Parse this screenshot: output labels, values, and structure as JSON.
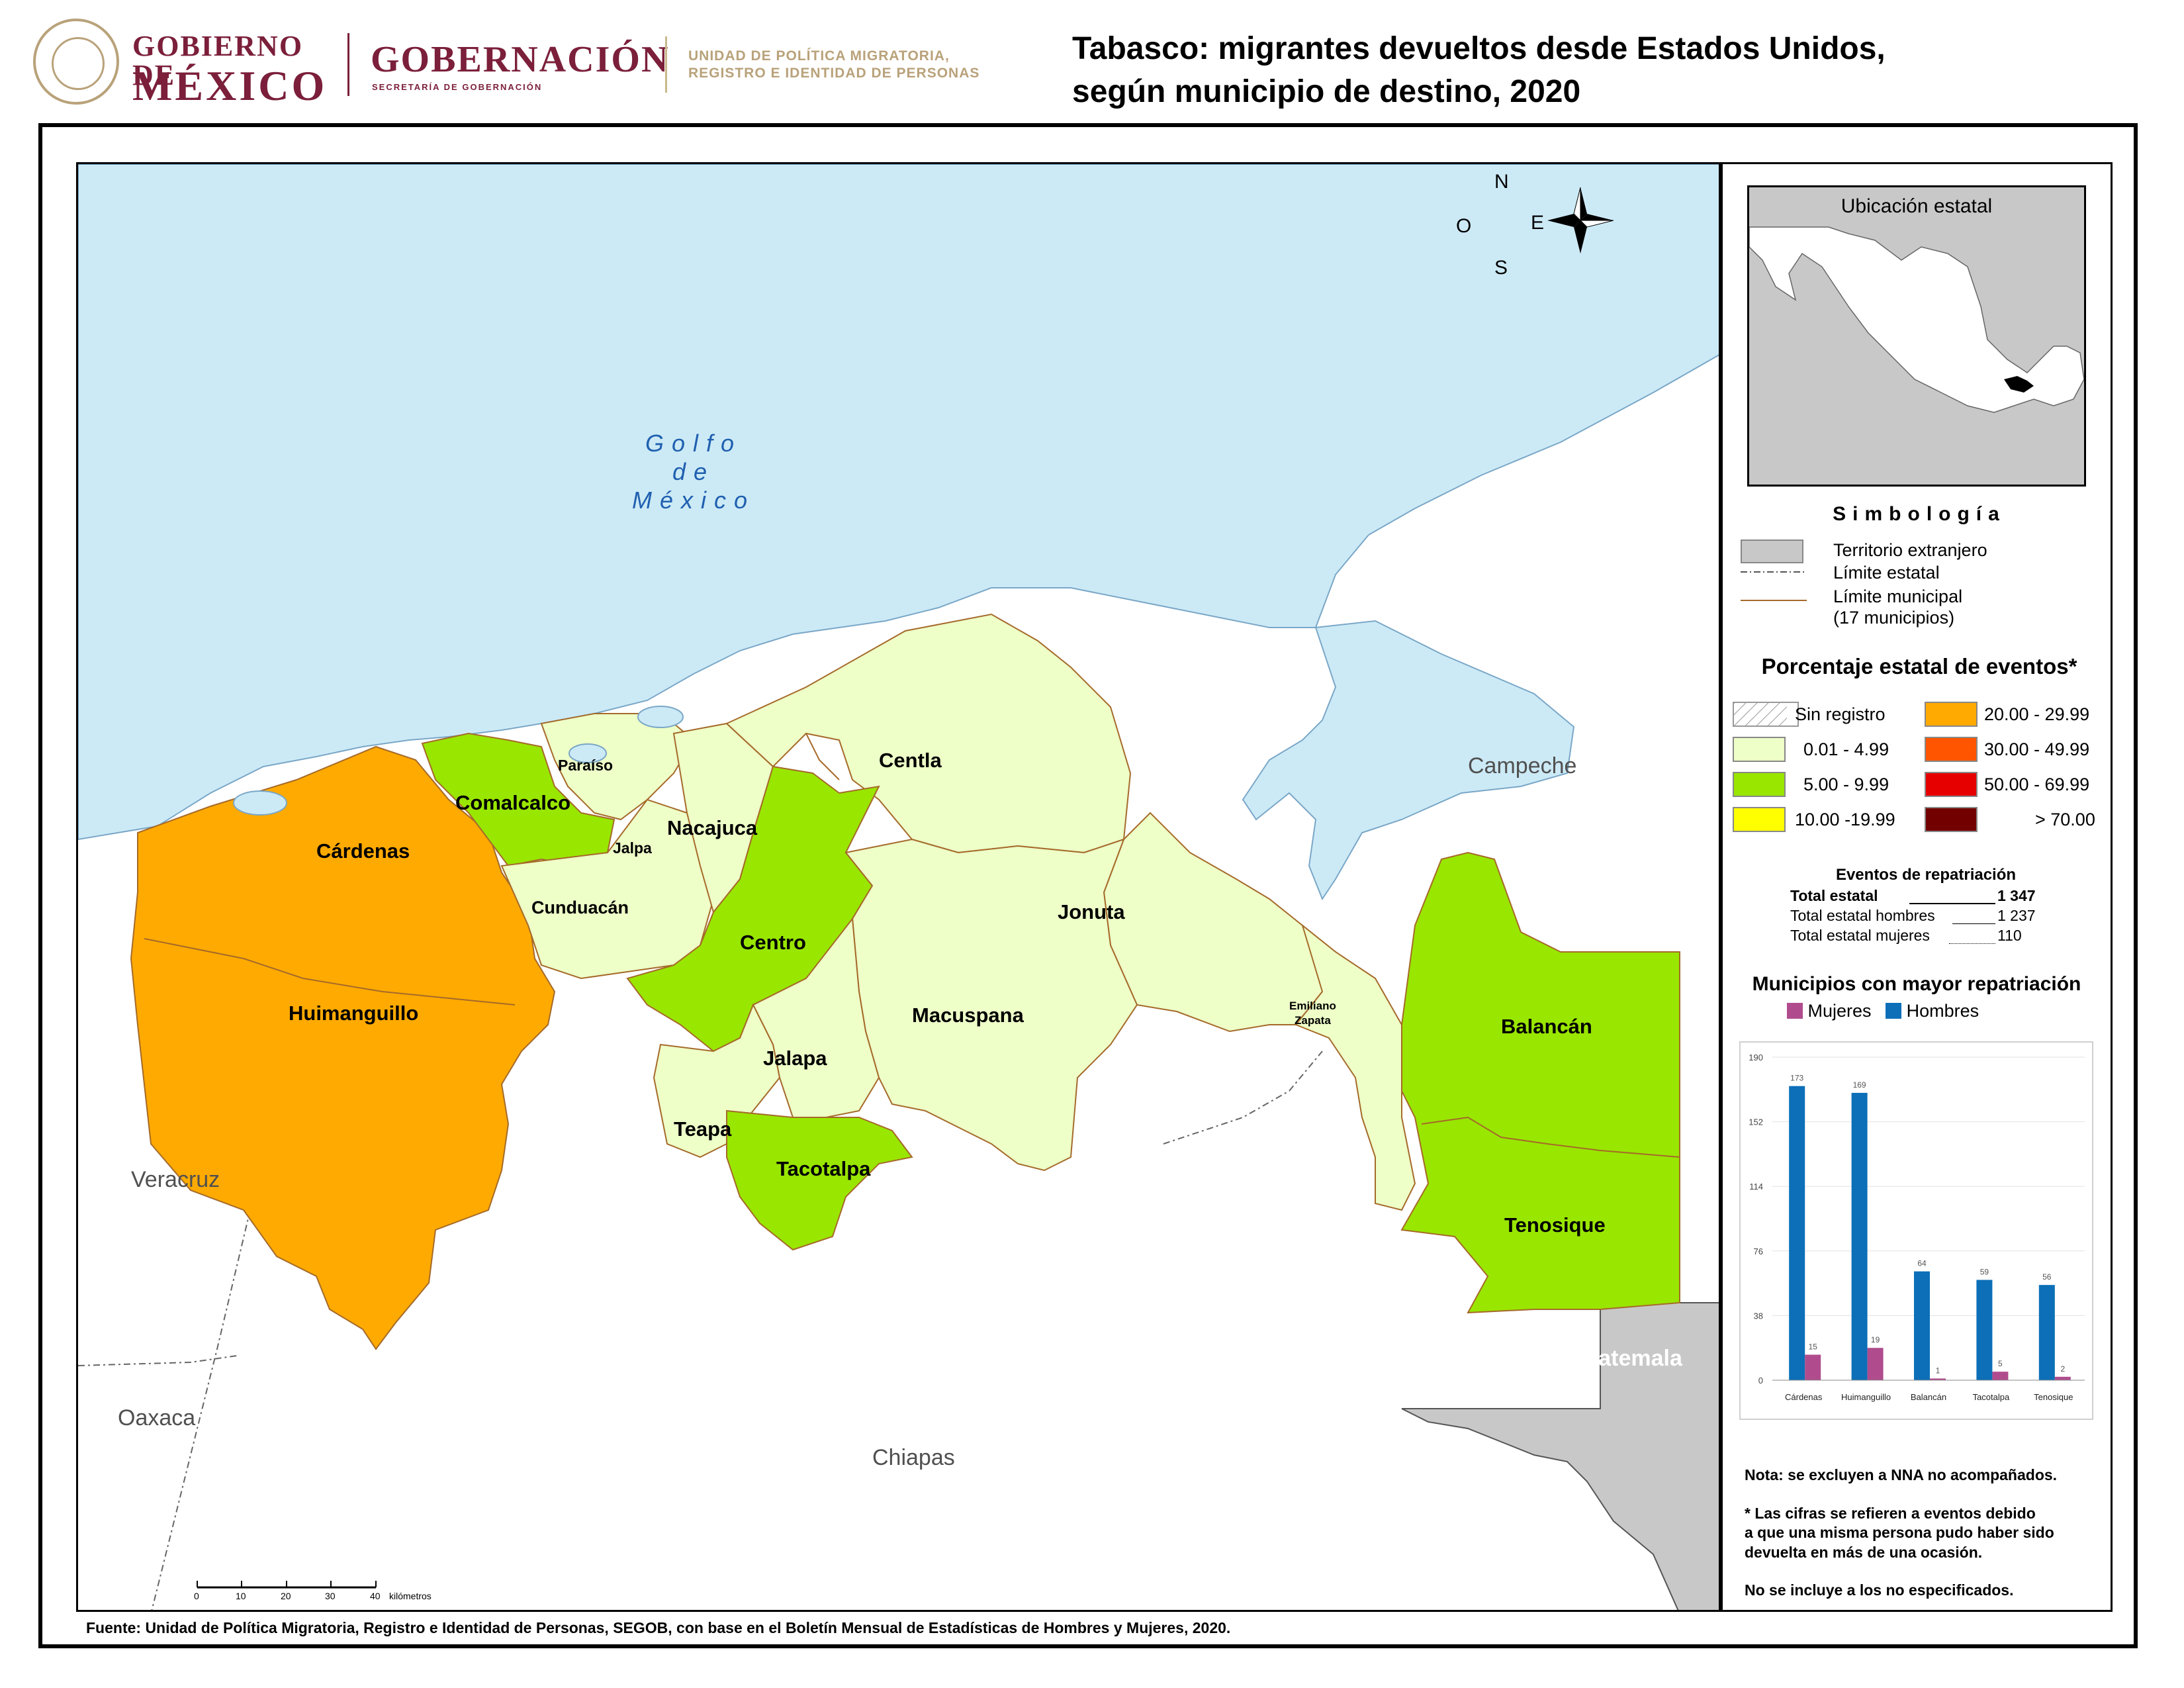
{
  "header": {
    "gobierno_line1": "GOBIERNO DE",
    "gobierno_line2": "MÉXICO",
    "gobernacion": "GOBERNACIÓN",
    "gobernacion_sub": "SECRETARÍA DE GOBERNACIÓN",
    "unidad_line1": "UNIDAD DE POLÍTICA MIGRATORIA,",
    "unidad_line2": "REGISTRO E IDENTIDAD DE PERSONAS",
    "title_line1": "Tabasco: migrantes devueltos desde Estados Unidos,",
    "title_line2": "según municipio de destino, 2020"
  },
  "map": {
    "gulf_label": [
      "Golfo",
      "de",
      "México"
    ],
    "neighbors": {
      "campeche": "Campeche",
      "veracruz": "Veracruz",
      "oaxaca": "Oaxaca",
      "chiapas": "Chiapas",
      "guatemala": "Guatemala"
    },
    "municipalities": [
      {
        "name": "Cárdenas",
        "class": "20.00 - 29.99"
      },
      {
        "name": "Huimanguillo",
        "class": "20.00 - 29.99"
      },
      {
        "name": "Comalcalco",
        "class": "5.00 - 9.99"
      },
      {
        "name": "Paraíso",
        "class": "0.01 - 4.99"
      },
      {
        "name": "Jalpa",
        "class": "0.01 - 4.99"
      },
      {
        "name": "Cunduacán",
        "class": "0.01 - 4.99"
      },
      {
        "name": "Nacajuca",
        "class": "0.01 - 4.99"
      },
      {
        "name": "Centla",
        "class": "0.01 - 4.99"
      },
      {
        "name": "Centro",
        "class": "5.00 - 9.99"
      },
      {
        "name": "Jonuta",
        "class": "0.01 - 4.99"
      },
      {
        "name": "Macuspana",
        "class": "0.01 - 4.99"
      },
      {
        "name": "Jalapa",
        "class": "0.01 - 4.99"
      },
      {
        "name": "Teapa",
        "class": "0.01 - 4.99"
      },
      {
        "name": "Tacotalpa",
        "class": "5.00 - 9.99"
      },
      {
        "name": "Emiliano",
        "class": "0.01 - 4.99"
      },
      {
        "name": "Zapata",
        "class": "0.01 - 4.99"
      },
      {
        "name": "Balancán",
        "class": "5.00 - 9.99"
      },
      {
        "name": "Tenosique",
        "class": "5.00 - 9.99"
      }
    ],
    "compass": {
      "n": "N",
      "s": "S",
      "e": "E",
      "o": "O"
    },
    "scale": {
      "ticks": [
        "0",
        "10",
        "20",
        "30",
        "40"
      ],
      "unit": "kilómetros"
    }
  },
  "inset": {
    "title": "Ubicación estatal"
  },
  "legend": {
    "title": "Simbología",
    "foreign": "Territorio extranjero",
    "state_limit": "Límite estatal",
    "muni_limit": "Límite municipal",
    "muni_count": "(17 municipios)"
  },
  "pct_legend": {
    "title": "Porcentaje estatal de eventos*",
    "classes": [
      {
        "label": "Sin registro",
        "color": "hatch"
      },
      {
        "label": "0.01  - 4.99",
        "color": "#eeffc8"
      },
      {
        "label": "5.00  - 9.99",
        "color": "#99e600"
      },
      {
        "label": "10.00 -19.99",
        "color": "#ffff00"
      },
      {
        "label": "20.00 - 29.99",
        "color": "#ffaa00"
      },
      {
        "label": "30.00 - 49.99",
        "color": "#ff5500"
      },
      {
        "label": "50.00 - 69.99",
        "color": "#e60000"
      },
      {
        "label": "> 70.00",
        "color": "#730000"
      }
    ]
  },
  "events": {
    "title": "Eventos de repatriación",
    "total_label": "Total estatal",
    "total_value": "1 347",
    "men_label": "Total estatal hombres",
    "men_value": "1 237",
    "women_label": "Total estatal mujeres",
    "women_value": "110"
  },
  "chart_title": "Municipios con mayor repatriación",
  "chart_data": {
    "type": "bar",
    "categories": [
      "Cárdenas",
      "Huimanguillo",
      "Balancán",
      "Tacotalpa",
      "Tenosique"
    ],
    "series": [
      {
        "name": "Mujeres",
        "color": "#b04c8e",
        "values": [
          15,
          19,
          1,
          5,
          2
        ]
      },
      {
        "name": "Hombres",
        "color": "#0c6fb8",
        "values": [
          173,
          169,
          64,
          59,
          56
        ]
      }
    ],
    "yticks": [
      "0",
      "38",
      "76",
      "114",
      "152",
      "190"
    ],
    "ylim": [
      0,
      190
    ],
    "grid": true,
    "legend": "top"
  },
  "notes": {
    "n1": "Nota: se excluyen a NNA no acompañados.",
    "n2_line1": "* Las cifras se refieren a eventos debido",
    "n2_line2": "a que una misma persona pudo haber sido",
    "n2_line3": "devuelta en más de una ocasión.",
    "n3": "No se incluye a los no especificados."
  },
  "source": "Fuente: Unidad de Política Migratoria, Registro e Identidad de Personas, SEGOB, con base en el Boletín Mensual de Estadísticas de Hombres y Mujeres, 2020."
}
